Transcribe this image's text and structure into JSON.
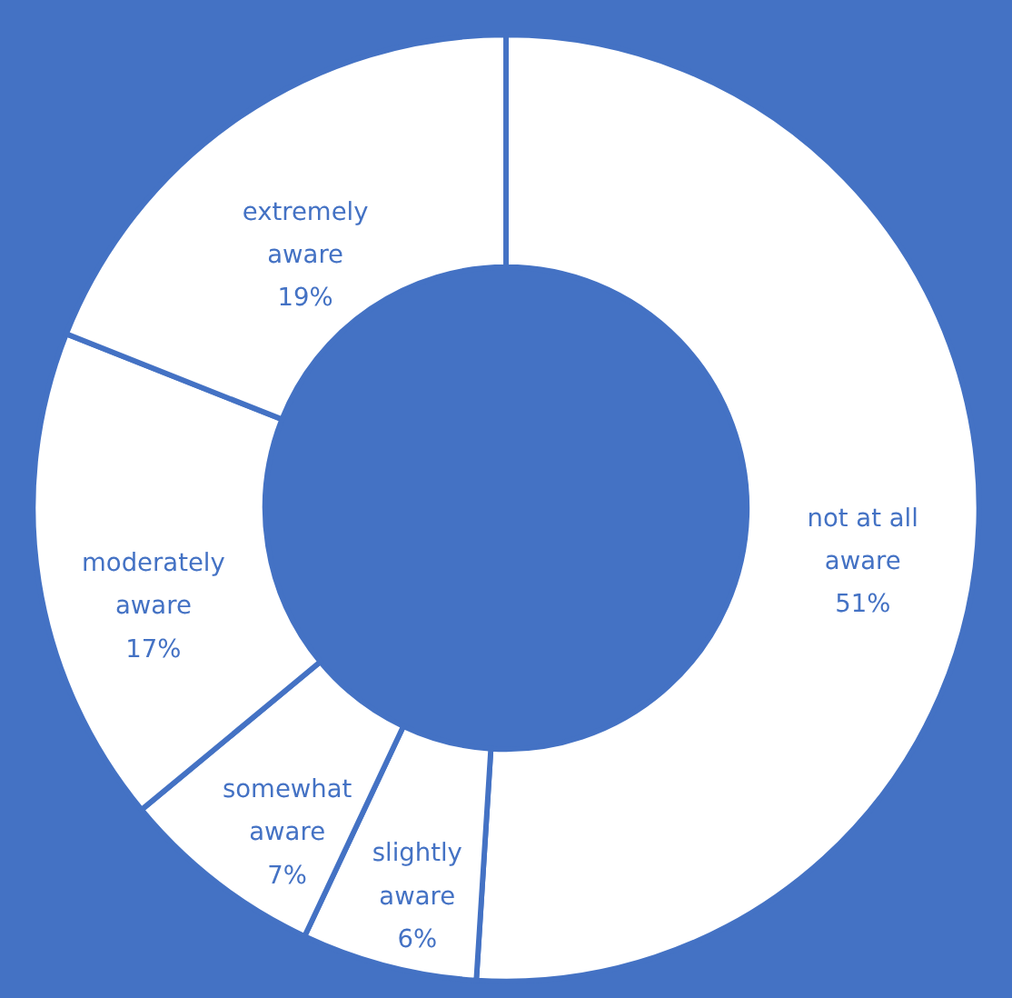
{
  "chart_data": {
    "type": "donut",
    "categories": [
      "not at all aware",
      "slightly aware",
      "somewhat aware",
      "moderately aware",
      "extremely aware"
    ],
    "values": [
      51,
      6,
      7,
      17,
      19
    ],
    "colors": [
      "#ffffff",
      "#ffffff",
      "#ffffff",
      "#ffffff",
      "#ffffff"
    ],
    "value_labels": [
      "51%",
      "6%",
      "7%",
      "17%",
      "19%"
    ]
  }
}
